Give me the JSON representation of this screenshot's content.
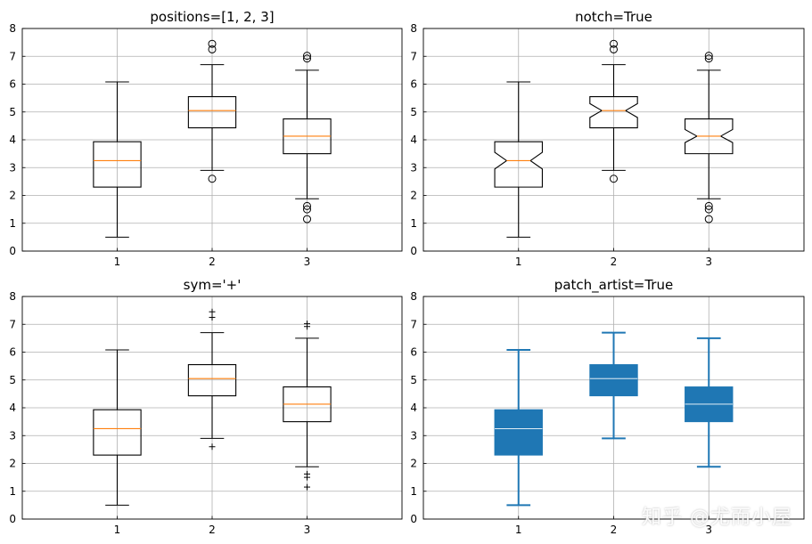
{
  "watermark": "知乎 @尤而小屋",
  "colors": {
    "median": "#ff7f0e",
    "patch": "#1f77b4",
    "grid": "#b0b0b0",
    "ink": "#000000"
  },
  "chart_data": [
    {
      "type": "box",
      "title": "positions=[1, 2, 3]",
      "style": "default",
      "sym": "o",
      "notch": false,
      "grid": true,
      "xlim": [
        0,
        4
      ],
      "ylim": [
        0,
        8
      ],
      "xticks": [
        1,
        2,
        3
      ],
      "yticks": [
        0,
        1,
        2,
        3,
        4,
        5,
        6,
        7,
        8
      ],
      "boxes": [
        {
          "position": 1,
          "whislo": 0.5,
          "q1": 2.3,
          "med": 3.25,
          "q3": 3.93,
          "whishi": 6.08,
          "fliers": []
        },
        {
          "position": 2,
          "whislo": 2.9,
          "q1": 4.43,
          "med": 5.05,
          "q3": 5.55,
          "whishi": 6.7,
          "fliers": [
            2.6,
            7.25,
            7.45
          ]
        },
        {
          "position": 3,
          "whislo": 1.88,
          "q1": 3.5,
          "med": 4.13,
          "q3": 4.75,
          "whishi": 6.5,
          "fliers": [
            1.15,
            1.5,
            1.62,
            6.92,
            7.02
          ]
        }
      ]
    },
    {
      "type": "box",
      "title": "notch=True",
      "style": "default",
      "sym": "o",
      "notch": true,
      "grid": true,
      "xlim": [
        0,
        4
      ],
      "ylim": [
        0,
        8
      ],
      "xticks": [
        1,
        2,
        3
      ],
      "yticks": [
        0,
        1,
        2,
        3,
        4,
        5,
        6,
        7,
        8
      ],
      "boxes": [
        {
          "position": 1,
          "whislo": 0.5,
          "q1": 2.3,
          "med": 3.25,
          "q3": 3.93,
          "whishi": 6.08,
          "notch_lo": 2.95,
          "notch_hi": 3.55,
          "fliers": []
        },
        {
          "position": 2,
          "whislo": 2.9,
          "q1": 4.43,
          "med": 5.05,
          "q3": 5.55,
          "whishi": 6.7,
          "notch_lo": 4.8,
          "notch_hi": 5.3,
          "fliers": [
            2.6,
            7.25,
            7.45
          ]
        },
        {
          "position": 3,
          "whislo": 1.88,
          "q1": 3.5,
          "med": 4.13,
          "q3": 4.75,
          "whishi": 6.5,
          "notch_lo": 3.9,
          "notch_hi": 4.37,
          "fliers": [
            1.15,
            1.5,
            1.62,
            6.92,
            7.02
          ]
        }
      ]
    },
    {
      "type": "box",
      "title": "sym='+'",
      "style": "default",
      "sym": "+",
      "notch": false,
      "grid": true,
      "xlim": [
        0,
        4
      ],
      "ylim": [
        0,
        8
      ],
      "xticks": [
        1,
        2,
        3
      ],
      "yticks": [
        0,
        1,
        2,
        3,
        4,
        5,
        6,
        7,
        8
      ],
      "boxes": [
        {
          "position": 1,
          "whislo": 0.5,
          "q1": 2.3,
          "med": 3.25,
          "q3": 3.93,
          "whishi": 6.08,
          "fliers": []
        },
        {
          "position": 2,
          "whislo": 2.9,
          "q1": 4.43,
          "med": 5.05,
          "q3": 5.55,
          "whishi": 6.7,
          "fliers": [
            2.6,
            7.25,
            7.45
          ]
        },
        {
          "position": 3,
          "whislo": 1.88,
          "q1": 3.5,
          "med": 4.13,
          "q3": 4.75,
          "whishi": 6.5,
          "fliers": [
            1.15,
            1.5,
            1.62,
            6.92,
            7.02
          ]
        }
      ]
    },
    {
      "type": "box",
      "title": "patch_artist=True",
      "style": "patch",
      "sym": "",
      "notch": false,
      "grid": true,
      "xlim": [
        0,
        4
      ],
      "ylim": [
        0,
        8
      ],
      "xticks": [
        1,
        2,
        3
      ],
      "yticks": [
        0,
        1,
        2,
        3,
        4,
        5,
        6,
        7,
        8
      ],
      "boxes": [
        {
          "position": 1,
          "whislo": 0.5,
          "q1": 2.3,
          "med": 3.25,
          "q3": 3.93,
          "whishi": 6.08,
          "fliers": []
        },
        {
          "position": 2,
          "whislo": 2.9,
          "q1": 4.43,
          "med": 5.05,
          "q3": 5.55,
          "whishi": 6.7,
          "fliers": []
        },
        {
          "position": 3,
          "whislo": 1.88,
          "q1": 3.5,
          "med": 4.13,
          "q3": 4.75,
          "whishi": 6.5,
          "fliers": []
        }
      ]
    }
  ]
}
